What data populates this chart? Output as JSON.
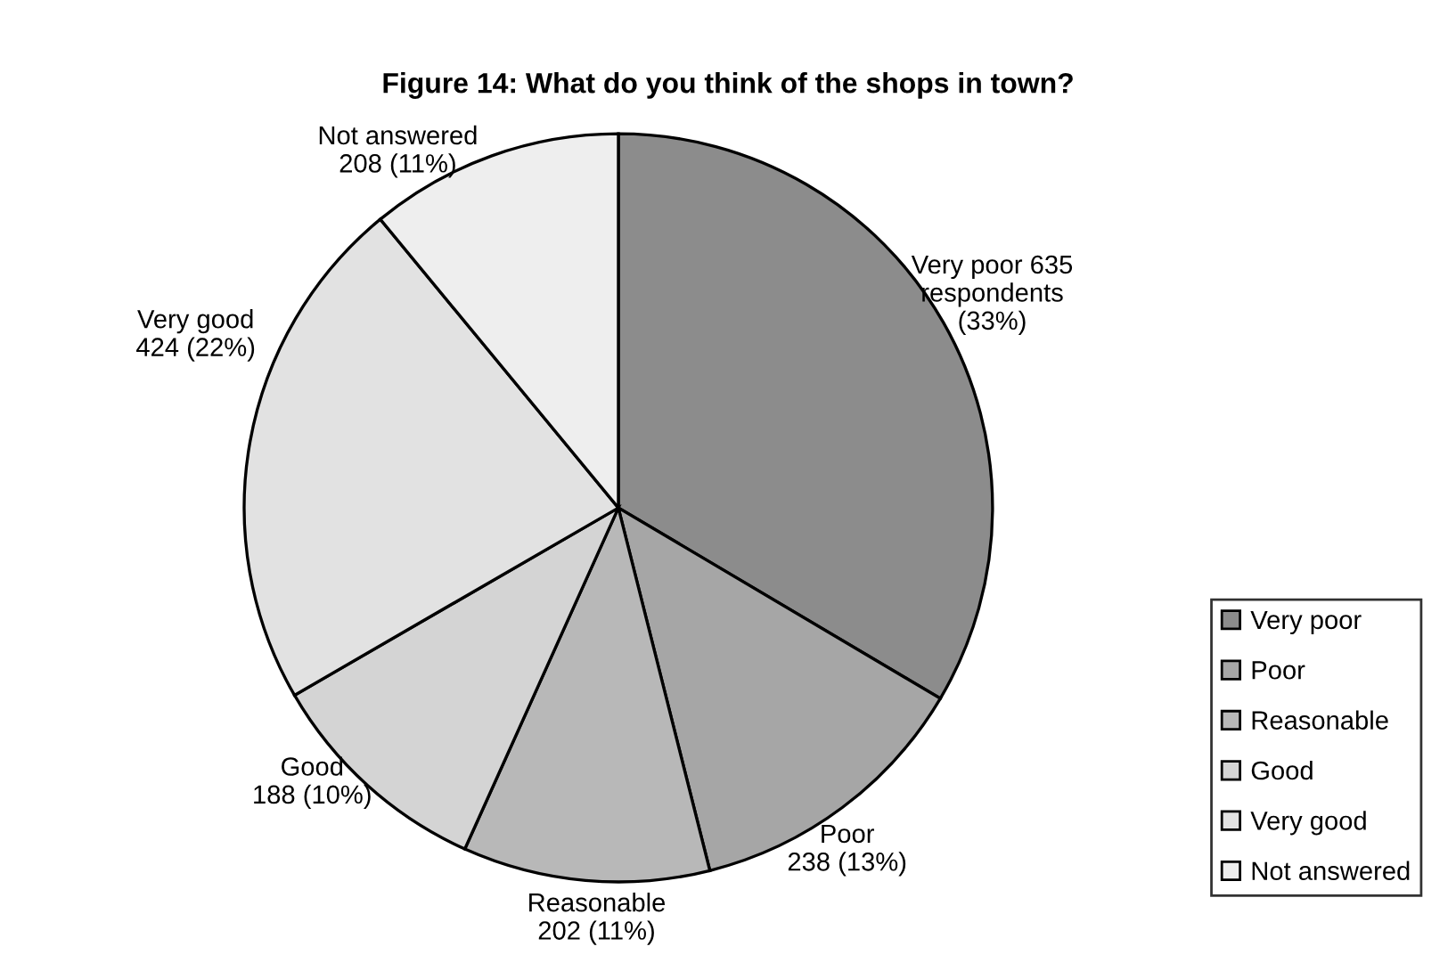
{
  "chart_data": {
    "type": "pie",
    "title": "Figure 14: What do you think of the shops in town?",
    "categories": [
      "Very poor",
      "Poor",
      "Reasonable",
      "Good",
      "Very good",
      "Not answered"
    ],
    "values": [
      635,
      238,
      202,
      188,
      424,
      208
    ],
    "value_labels": [
      "Very poor 635\nrespondents\n(33%)",
      "Poor\n238 (13%)",
      "Reasonable\n202 (11%)",
      "Good\n188 (10%)",
      "Very good\n424 (22%)",
      "Not answered\n208 (11%)"
    ],
    "colors": [
      "#8c8c8c",
      "#a6a6a6",
      "#b8b8b8",
      "#d4d4d4",
      "#e2e2e2",
      "#eeeeee"
    ],
    "legend": "right"
  }
}
